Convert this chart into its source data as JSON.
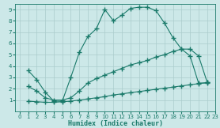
{
  "xlabel": "Humidex (Indice chaleur)",
  "bg_color": "#cce8e8",
  "grid_color": "#aacccc",
  "line_color": "#1a7a6a",
  "xlim": [
    -0.5,
    23
  ],
  "ylim": [
    0,
    9.5
  ],
  "xticks": [
    0,
    1,
    2,
    3,
    4,
    5,
    6,
    7,
    8,
    9,
    10,
    11,
    12,
    13,
    14,
    15,
    16,
    17,
    18,
    19,
    20,
    21,
    22,
    23
  ],
  "yticks": [
    1,
    2,
    3,
    4,
    5,
    6,
    7,
    8,
    9
  ],
  "curve1_x": [
    1,
    2,
    3,
    4,
    5,
    6,
    7,
    8,
    9,
    10,
    11,
    12,
    13,
    14,
    15,
    16,
    17,
    18,
    19,
    20,
    21,
    22
  ],
  "curve1_y": [
    3.6,
    2.8,
    1.7,
    0.9,
    0.9,
    3.0,
    5.2,
    6.6,
    7.3,
    9.0,
    8.0,
    8.5,
    9.1,
    9.2,
    9.2,
    8.9,
    7.8,
    6.5,
    5.5,
    4.9,
    2.5,
    2.5
  ],
  "curve2_x": [
    1,
    2,
    3,
    4,
    5,
    6,
    7,
    8,
    9,
    10,
    11,
    12,
    13,
    14,
    15,
    16,
    17,
    18,
    19,
    20,
    21,
    22
  ],
  "curve2_y": [
    2.2,
    1.8,
    1.2,
    1.0,
    1.0,
    1.2,
    1.8,
    2.5,
    2.9,
    3.2,
    3.5,
    3.8,
    4.1,
    4.3,
    4.5,
    4.8,
    5.0,
    5.3,
    5.5,
    5.5,
    4.9,
    2.6
  ],
  "curve3_x": [
    1,
    2,
    3,
    4,
    5,
    6,
    7,
    8,
    9,
    10,
    11,
    12,
    13,
    14,
    15,
    16,
    17,
    18,
    19,
    20,
    21,
    22
  ],
  "curve3_y": [
    0.9,
    0.85,
    0.8,
    0.8,
    0.85,
    0.9,
    1.0,
    1.1,
    1.2,
    1.3,
    1.45,
    1.55,
    1.65,
    1.75,
    1.85,
    1.95,
    2.05,
    2.15,
    2.25,
    2.35,
    2.45,
    2.55
  ]
}
